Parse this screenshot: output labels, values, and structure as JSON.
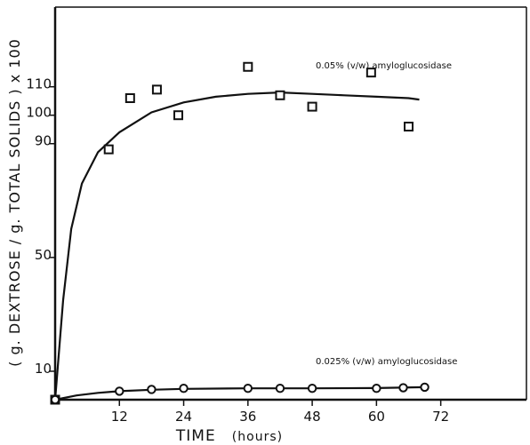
{
  "chart_data": {
    "type": "scatter",
    "xlabel": "TIME",
    "xlabel_unit": "(hours)",
    "ylabel": "( g. DEXTROSE / g. TOTAL SOLIDS ) x 100",
    "xlim": [
      0,
      88
    ],
    "ylim": [
      0,
      138
    ],
    "x_ticks": [
      12,
      24,
      36,
      48,
      60,
      72
    ],
    "y_ticks": [
      10,
      50,
      90,
      100,
      110
    ],
    "x_tick_labels": [
      "12",
      "24",
      "36",
      "48",
      "60",
      "72"
    ],
    "y_tick_labels": [
      "10",
      "50",
      "90",
      "100",
      "110"
    ],
    "series": [
      {
        "name": "0.05% (v/w) amyloglucosidase",
        "marker": "square",
        "points": [
          [
            0,
            0
          ],
          [
            10,
            88
          ],
          [
            14,
            106
          ],
          [
            19,
            109
          ],
          [
            23,
            100
          ],
          [
            36,
            117
          ],
          [
            42,
            107
          ],
          [
            48,
            103
          ],
          [
            59,
            115
          ],
          [
            66,
            96
          ]
        ],
        "curve": [
          [
            0,
            0
          ],
          [
            1.5,
            35
          ],
          [
            3,
            60
          ],
          [
            5,
            76
          ],
          [
            8,
            87
          ],
          [
            12,
            94
          ],
          [
            18,
            101
          ],
          [
            24,
            104.5
          ],
          [
            30,
            106.5
          ],
          [
            36,
            107.5
          ],
          [
            42,
            108
          ],
          [
            48,
            107.5
          ],
          [
            54,
            107
          ],
          [
            60,
            106.5
          ],
          [
            66,
            106
          ],
          [
            68,
            105.5
          ]
        ]
      },
      {
        "name": "0.025% (v/w) amyloglucosidase",
        "marker": "circle",
        "points": [
          [
            0,
            0
          ],
          [
            12,
            3
          ],
          [
            18,
            3.6
          ],
          [
            24,
            4
          ],
          [
            36,
            4
          ],
          [
            42,
            4
          ],
          [
            48,
            4
          ],
          [
            60,
            4
          ],
          [
            65,
            4.2
          ],
          [
            69,
            4.4
          ]
        ],
        "curve": [
          [
            0,
            0
          ],
          [
            4,
            1.5
          ],
          [
            8,
            2.4
          ],
          [
            12,
            3
          ],
          [
            18,
            3.5
          ],
          [
            24,
            3.8
          ],
          [
            36,
            4
          ],
          [
            48,
            4
          ],
          [
            60,
            4.1
          ],
          [
            69,
            4.4
          ]
        ]
      }
    ]
  }
}
